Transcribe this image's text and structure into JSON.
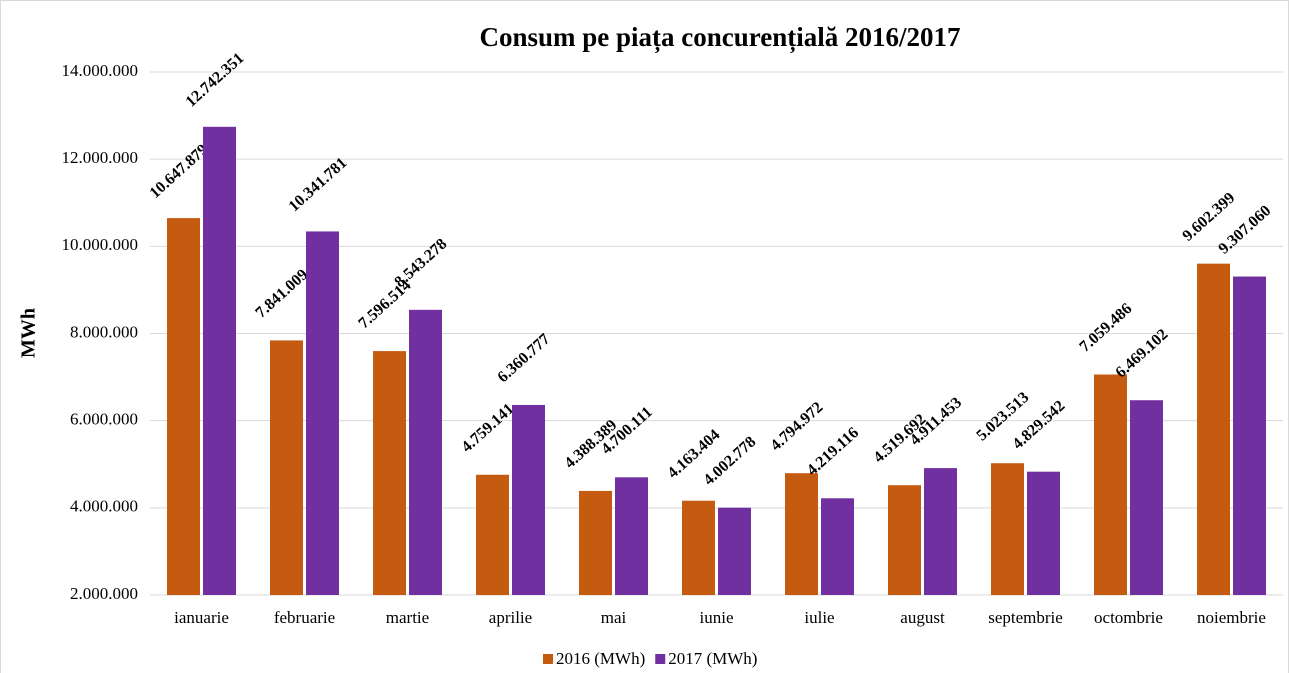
{
  "chart_data": {
    "type": "bar",
    "title": "Consum pe piața concurențială 2016/2017",
    "y_label": "MWh",
    "categories": [
      "ianuarie",
      "februarie",
      "martie",
      "aprilie",
      "mai",
      "iunie",
      "iulie",
      "august",
      "septembrie",
      "octombrie",
      "noiembrie"
    ],
    "series": [
      {
        "name": "2016 (MWh)",
        "color": "#c55a11",
        "values": [
          10647879,
          7841009,
          7596514,
          4759141,
          4388389,
          4163404,
          4794972,
          4519692,
          5023513,
          7059486,
          9602399
        ],
        "value_labels": [
          "10.647.879",
          "7.841.009",
          "7.596.514",
          "4.759.141",
          "4.388.389",
          "4.163.404",
          "4.794.972",
          "4.519.692",
          "5.023.513",
          "7.059.486",
          "9.602.399"
        ]
      },
      {
        "name": "2017 (MWh)",
        "color": "#7030a0",
        "values": [
          12742351,
          10341781,
          8543278,
          6360777,
          4700111,
          4002778,
          4219116,
          4911453,
          4829542,
          6469102,
          9307060
        ],
        "value_labels": [
          "12.742.351",
          "10.341.781",
          "8.543.278",
          "6.360.777",
          "4.700.111",
          "4.002.778",
          "4.219.116",
          "4.911.453",
          "4.829.542",
          "6.469.102",
          "9.307.060"
        ]
      }
    ],
    "ylim": [
      2000000,
      14000000
    ],
    "yticks": [
      {
        "value": 2000000,
        "label": "2.000.000"
      },
      {
        "value": 4000000,
        "label": "4.000.000"
      },
      {
        "value": 6000000,
        "label": "6.000.000"
      },
      {
        "value": 8000000,
        "label": "8.000.000"
      },
      {
        "value": 10000000,
        "label": "10.000.000"
      },
      {
        "value": 12000000,
        "label": "12.000.000"
      },
      {
        "value": 14000000,
        "label": "14.000.000"
      }
    ],
    "grid": true,
    "legend": "bottom"
  }
}
